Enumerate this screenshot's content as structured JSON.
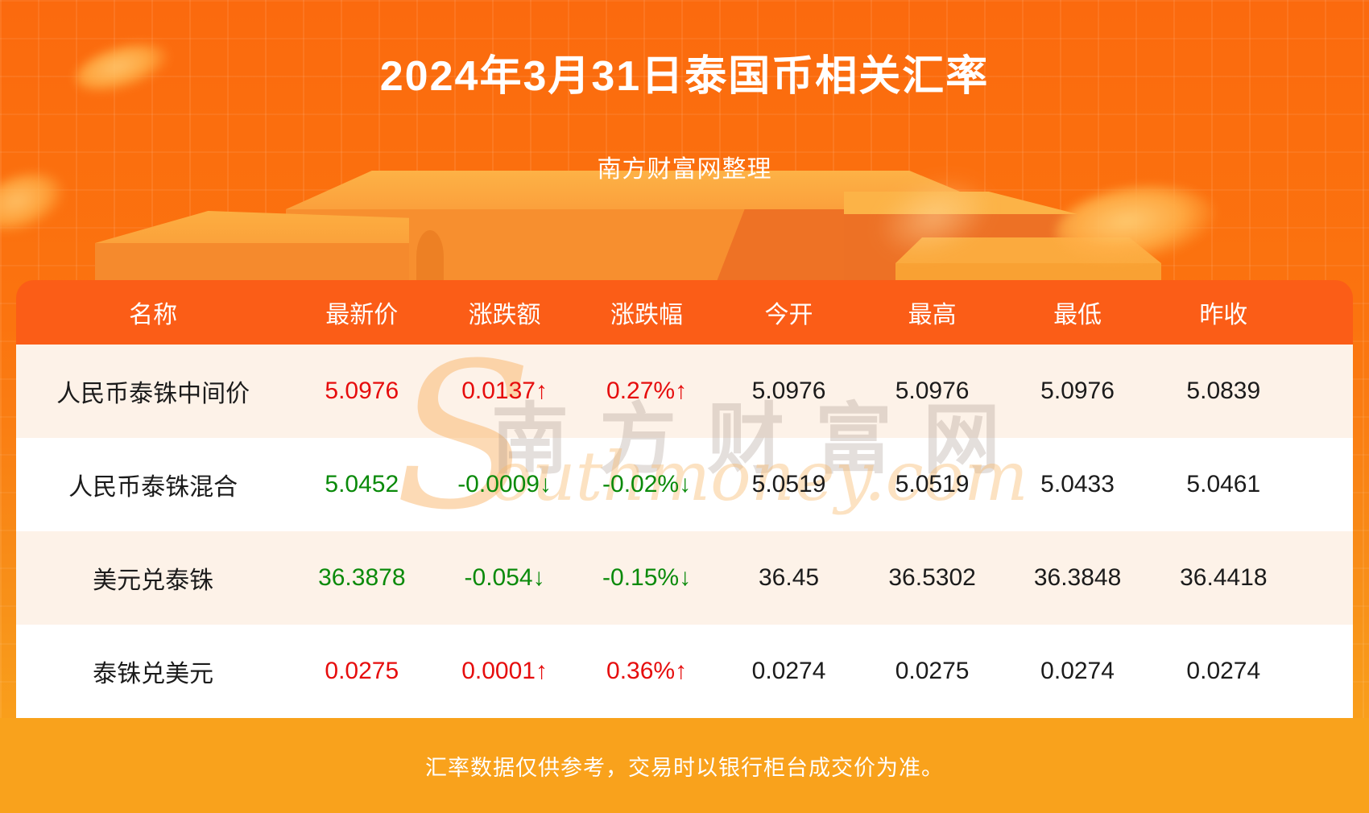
{
  "header": {
    "title": "2024年3月31日泰国币相关汇率",
    "subtitle": "南方财富网整理"
  },
  "watermark": {
    "initial": "S",
    "cn": "南方财富网",
    "en": "outhmoney.com"
  },
  "footer": {
    "note": "汇率数据仅供参考，交易时以银行柜台成交价为准。"
  },
  "colors": {
    "up": "#e60d0d",
    "down": "#0a8a0a",
    "header_bg": "#fb5d17",
    "row_alt_bg": "#fdf2e8",
    "row_bg": "#ffffff",
    "footer_bg": "#f9a21c",
    "page_bg_top": "#fb6a0e",
    "page_bg_bottom": "#f9a71c"
  },
  "chart_data": {
    "type": "table",
    "columns": [
      "名称",
      "最新价",
      "涨跌额",
      "涨跌幅",
      "今开",
      "最高",
      "最低",
      "昨收"
    ],
    "rows": [
      {
        "name": "人民币泰铢中间价",
        "latest": "5.0976",
        "change": "0.0137↑",
        "change_pct": "0.27%↑",
        "trend": "up",
        "open": "5.0976",
        "high": "5.0976",
        "low": "5.0976",
        "prev_close": "5.0839"
      },
      {
        "name": "人民币泰铢混合",
        "latest": "5.0452",
        "change": "-0.0009↓",
        "change_pct": "-0.02%↓",
        "trend": "down",
        "open": "5.0519",
        "high": "5.0519",
        "low": "5.0433",
        "prev_close": "5.0461"
      },
      {
        "name": "美元兑泰铢",
        "latest": "36.3878",
        "change": "-0.054↓",
        "change_pct": "-0.15%↓",
        "trend": "down",
        "open": "36.45",
        "high": "36.5302",
        "low": "36.3848",
        "prev_close": "36.4418"
      },
      {
        "name": "泰铢兑美元",
        "latest": "0.0275",
        "change": "0.0001↑",
        "change_pct": "0.36%↑",
        "trend": "up",
        "open": "0.0274",
        "high": "0.0275",
        "low": "0.0274",
        "prev_close": "0.0274"
      }
    ]
  }
}
